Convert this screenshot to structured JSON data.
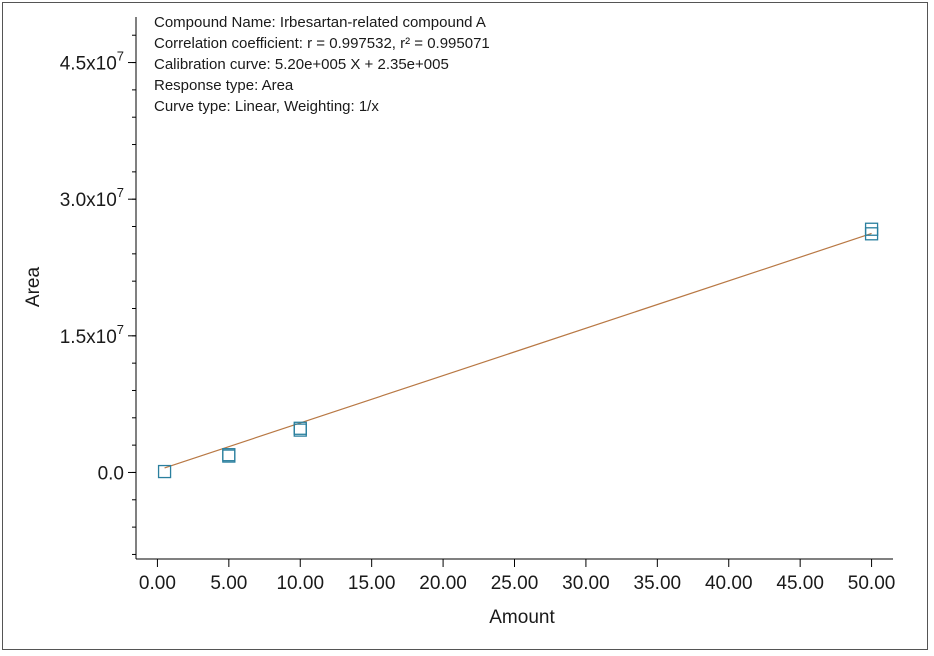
{
  "chart_data": {
    "type": "scatter",
    "info": [
      "Compound Name: Irbesartan-related compound A",
      "Correlation coefficient: r = 0.997532, r² = 0.995071",
      "Calibration curve: 5.20e+005 X + 2.35e+005",
      "Response type: Area",
      "Curve type: Linear, Weighting: 1/x"
    ],
    "xlabel": "Amount",
    "ylabel": "Area",
    "xlim": [
      -1.5,
      51.5
    ],
    "ylim": [
      -9500000,
      50000000
    ],
    "x_ticks": [
      0.0,
      5.0,
      10.0,
      15.0,
      20.0,
      25.0,
      30.0,
      35.0,
      40.0,
      45.0,
      50.0
    ],
    "x_tick_labels": [
      "0.00",
      "5.00",
      "10.00",
      "15.00",
      "20.00",
      "25.00",
      "30.00",
      "35.00",
      "40.00",
      "45.00",
      "50.00"
    ],
    "y_ticks": [
      0,
      15000000,
      30000000,
      45000000
    ],
    "y_tick_labels": [
      {
        "base": "0.0",
        "exp": ""
      },
      {
        "base": "1.5x10",
        "exp": "7"
      },
      {
        "base": "3.0x10",
        "exp": "7"
      },
      {
        "base": "4.5x10",
        "exp": "7"
      }
    ],
    "y_minor_step": 3000000,
    "fit": {
      "slope": 520000,
      "intercept": 235000,
      "x_range": [
        0.5,
        50.0
      ]
    },
    "points": [
      {
        "x": 0.5,
        "y": 100000
      },
      {
        "x": 5.0,
        "y": 1800000
      },
      {
        "x": 5.0,
        "y": 1950000
      },
      {
        "x": 10.0,
        "y": 4650000
      },
      {
        "x": 10.0,
        "y": 4850000
      },
      {
        "x": 50.0,
        "y": 26200000
      },
      {
        "x": 50.0,
        "y": 26700000
      }
    ],
    "colors": {
      "points": "#2a7f9e",
      "fit_line": "#b87844",
      "axis": "#000000"
    },
    "grid": false
  }
}
